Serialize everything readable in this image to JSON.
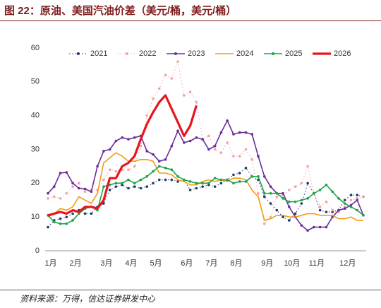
{
  "header": {
    "title": "图 22：原油、美国汽油价差（美元/桶，美元/桶）"
  },
  "source": "资料来源：万得，信达证券研发中心",
  "chart_data": {
    "type": "line",
    "categories": [
      "1月",
      null,
      null,
      null,
      "2月",
      null,
      null,
      null,
      null,
      "3月",
      null,
      null,
      null,
      "4月",
      null,
      null,
      null,
      "5月",
      null,
      null,
      null,
      null,
      "6月",
      null,
      null,
      null,
      "7月",
      null,
      null,
      null,
      "8月",
      null,
      null,
      null,
      null,
      "9月",
      null,
      null,
      null,
      "10月",
      null,
      null,
      null,
      "11月",
      null,
      null,
      null,
      null,
      "12月",
      null,
      null,
      null
    ],
    "ylim": [
      0,
      60
    ],
    "yticks": [
      0,
      10,
      20,
      30,
      40,
      50,
      60
    ],
    "grid": false,
    "series": [
      {
        "name": "2021",
        "color": "#1f3a6e",
        "line_style": "dotted",
        "marker": true,
        "values": [
          7,
          9,
          9.5,
          10,
          11,
          12,
          11,
          11,
          13,
          14,
          18,
          19,
          19.5,
          18.5,
          19,
          18.5,
          19,
          20,
          21,
          21,
          21,
          20.5,
          21,
          18,
          18.5,
          19,
          19.5,
          19,
          20,
          21,
          22.5,
          23,
          24.5,
          22,
          21,
          16,
          14,
          12,
          10,
          9,
          11,
          14,
          20,
          17,
          12,
          11.5,
          11.5,
          12,
          15,
          16.5,
          16.5,
          16
        ]
      },
      {
        "name": "2022",
        "color": "#f4a0a8",
        "line_style": "dotted",
        "marker": true,
        "values": [
          15.5,
          16,
          15.5,
          17,
          19,
          20,
          17.5,
          18,
          18,
          21,
          24,
          23.5,
          24,
          24,
          25,
          31,
          40,
          45,
          48,
          52,
          51,
          56,
          46,
          47,
          44,
          33,
          34,
          30,
          29,
          32,
          28,
          28,
          30,
          27,
          17,
          8,
          10,
          16,
          16.5,
          18,
          19,
          20,
          25,
          17,
          13,
          14.5,
          12,
          11.5,
          13,
          15,
          15.5,
          16
        ]
      },
      {
        "name": "2023",
        "color": "#6a2c9a",
        "line_style": "solid",
        "marker": true,
        "values": [
          17,
          19,
          23,
          23.2,
          20,
          18.5,
          18.3,
          17.5,
          25,
          29.5,
          30,
          32.5,
          33.5,
          33,
          33.5,
          34,
          29.5,
          28.5,
          26.5,
          27,
          31,
          35.5,
          32,
          32.5,
          33.5,
          33,
          30,
          31,
          35,
          38.5,
          34.5,
          35,
          35,
          34.5,
          28,
          22,
          19,
          17,
          17,
          13,
          10,
          7.5,
          6,
          7,
          7,
          7,
          10,
          12,
          12.5,
          13.5,
          15,
          10.5
        ]
      },
      {
        "name": "2024",
        "color": "#f39c12",
        "line_style": "solid",
        "marker": false,
        "values": [
          10,
          11,
          12.5,
          12,
          13,
          16,
          15,
          14,
          17,
          26,
          27.5,
          29,
          28,
          26.5,
          26.5,
          27,
          27,
          26.5,
          23,
          23,
          22.5,
          21,
          20.5,
          19.5,
          19.5,
          20.5,
          21,
          20.5,
          21,
          20.5,
          21.5,
          21.5,
          21,
          18,
          16,
          9,
          9.5,
          10.5,
          10.5,
          10,
          10,
          10.5,
          11,
          11,
          10.5,
          10.5,
          10.5,
          9.5,
          9.5,
          10,
          9,
          9
        ]
      },
      {
        "name": "2025",
        "color": "#1fa34a",
        "line_style": "solid",
        "marker": true,
        "values": [
          10.5,
          8.5,
          8,
          8,
          9,
          11,
          12.5,
          13,
          12,
          19,
          19.5,
          20,
          20,
          21,
          20,
          21,
          22,
          23.5,
          25,
          24.5,
          24,
          22,
          21,
          20.5,
          20,
          20,
          20,
          21.5,
          21,
          21,
          20,
          20.5,
          20.5,
          22,
          22,
          17,
          17,
          17,
          15.5,
          14.5,
          14.5,
          15,
          15.5,
          17,
          18,
          19.5,
          17.5,
          15.5,
          14,
          13,
          12,
          10.5
        ]
      },
      {
        "name": "2026",
        "color": "#e8141a",
        "line_style": "thick",
        "marker": false,
        "values": [
          10.5,
          11,
          11.5,
          11,
          12,
          11.5,
          13,
          13,
          12.5,
          15,
          21.5,
          21.5,
          25,
          26,
          28,
          33,
          37.5,
          41,
          44,
          46,
          42,
          38,
          34,
          37,
          43,
          null,
          null,
          null,
          null,
          null,
          null,
          null,
          null,
          null,
          null,
          null,
          null,
          null,
          null,
          null,
          null,
          null,
          null,
          null,
          null,
          null,
          null,
          null,
          null,
          null,
          null,
          null
        ]
      }
    ]
  }
}
